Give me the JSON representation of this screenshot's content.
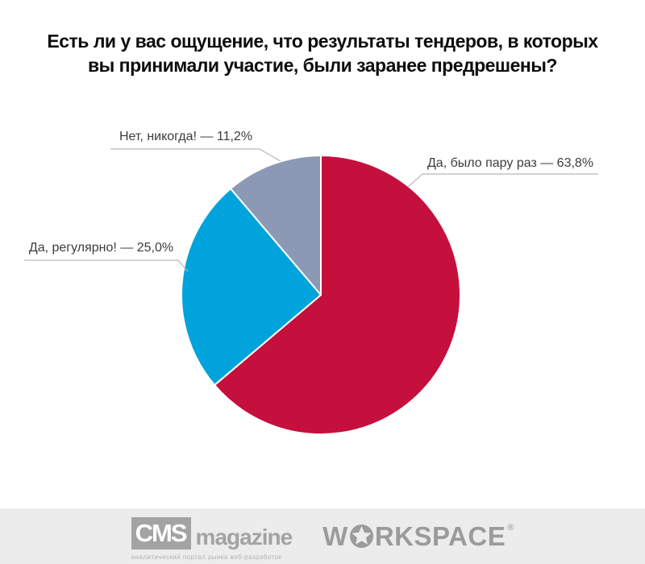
{
  "title": {
    "line1": "Есть ли у вас ощущение, что результаты тендеров, в которых",
    "line2": "вы принимали участие, были заранее предрешены?"
  },
  "chart_data": {
    "type": "pie",
    "title": "Есть ли у вас ощущение, что результаты тендеров, в которых вы принимали участие, были заранее предрешены?",
    "start_angle_deg": 0,
    "direction": "clockwise",
    "total_percent": 100,
    "slices": [
      {
        "label": "Да, было пару раз",
        "value": 63.8,
        "display": "Да, было пару раз — 63,8%",
        "color": "#c50f3c",
        "label_position": "top-right"
      },
      {
        "label": "Да, регулярно!",
        "value": 25.0,
        "display": "Да, регулярно! — 25,0%",
        "color": "#00a3dc",
        "label_position": "left"
      },
      {
        "label": "Нет, никогда!",
        "value": 11.2,
        "display": "Нет, никогда! — 11,2%",
        "color": "#8c99b5",
        "label_position": "top-left"
      }
    ],
    "legend": "labels-with-leader-lines",
    "grid": false
  },
  "colors": {
    "leader_line": "#b9b9b9",
    "label_text": "#3c3c3c",
    "footer_bg": "#ececec",
    "logo_gray": "#a3a3a3"
  },
  "footer": {
    "cms": {
      "box_text": "CMS",
      "suffix": "magazine",
      "tagline": "аналитический портал рынка веб-разработок"
    },
    "workspace": {
      "part1": "W",
      "part2": "RKSPACE",
      "registered": "®"
    }
  }
}
